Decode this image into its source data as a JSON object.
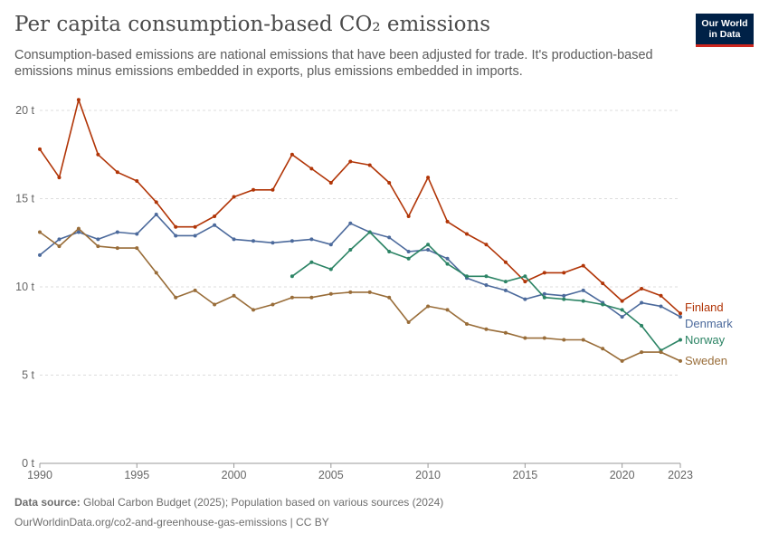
{
  "header": {
    "title": "Per capita consumption-based CO₂ emissions",
    "subtitle": "Consumption-based emissions are national emissions that have been adjusted for trade. It's production-based emissions minus emissions embedded in exports, plus emissions embedded in imports.",
    "logo_line1": "Our World",
    "logo_line2": "in Data"
  },
  "footer": {
    "source_label": "Data source:",
    "source_text": "Global Carbon Budget (2025); Population based on various sources (2024)",
    "url": "OurWorldinData.org/co2-and-greenhouse-gas-emissions | CC BY"
  },
  "colors": {
    "Finland": "#b13507",
    "Denmark": "#4c6a9c",
    "Norway": "#2c8465",
    "Sweden": "#996d39"
  },
  "chart_data": {
    "type": "line",
    "xlim": [
      1990,
      2023
    ],
    "ylim": [
      0,
      20
    ],
    "x_ticks": [
      1990,
      1995,
      2000,
      2005,
      2010,
      2015,
      2020,
      2023
    ],
    "y_ticks": [
      0,
      5,
      10,
      15,
      20
    ],
    "y_tick_labels": [
      "0 t",
      "5 t",
      "10 t",
      "15 t",
      "20 t"
    ],
    "grid": "horizontal",
    "legend": "line-end labels",
    "series": [
      {
        "name": "Finland",
        "x": [
          1990,
          1991,
          1992,
          1993,
          1994,
          1995,
          1996,
          1997,
          1998,
          1999,
          2000,
          2001,
          2002,
          2003,
          2004,
          2005,
          2006,
          2007,
          2008,
          2009,
          2010,
          2011,
          2012,
          2013,
          2014,
          2015,
          2016,
          2017,
          2018,
          2019,
          2020,
          2021,
          2022,
          2023
        ],
        "values": [
          17.8,
          16.2,
          20.6,
          17.5,
          16.5,
          16.0,
          14.8,
          13.4,
          13.4,
          14.0,
          15.1,
          15.5,
          15.5,
          17.5,
          16.7,
          15.9,
          17.1,
          16.9,
          15.9,
          14.0,
          16.2,
          13.7,
          13.0,
          12.4,
          11.4,
          10.3,
          10.8,
          10.8,
          11.2,
          10.2,
          9.2,
          9.9,
          9.5,
          8.5
        ]
      },
      {
        "name": "Denmark",
        "x": [
          1990,
          1991,
          1992,
          1993,
          1994,
          1995,
          1996,
          1997,
          1998,
          1999,
          2000,
          2001,
          2002,
          2003,
          2004,
          2005,
          2006,
          2007,
          2008,
          2009,
          2010,
          2011,
          2012,
          2013,
          2014,
          2015,
          2016,
          2017,
          2018,
          2019,
          2020,
          2021,
          2022,
          2023
        ],
        "values": [
          11.8,
          12.7,
          13.1,
          12.7,
          13.1,
          13.0,
          14.1,
          12.9,
          12.9,
          13.5,
          12.7,
          12.6,
          12.5,
          12.6,
          12.7,
          12.4,
          13.6,
          13.1,
          12.8,
          12.0,
          12.1,
          11.6,
          10.5,
          10.1,
          9.8,
          9.3,
          9.6,
          9.5,
          9.8,
          9.1,
          8.3,
          9.1,
          8.9,
          8.3
        ]
      },
      {
        "name": "Norway",
        "x": [
          2003,
          2004,
          2005,
          2006,
          2007,
          2008,
          2009,
          2010,
          2011,
          2012,
          2013,
          2014,
          2015,
          2016,
          2017,
          2018,
          2019,
          2020,
          2021,
          2022,
          2023
        ],
        "values": [
          10.6,
          11.4,
          11.0,
          12.1,
          13.1,
          12.0,
          11.6,
          12.4,
          11.3,
          10.6,
          10.6,
          10.3,
          10.6,
          9.4,
          9.3,
          9.2,
          9.0,
          8.7,
          7.8,
          6.4,
          7.0
        ]
      },
      {
        "name": "Sweden",
        "x": [
          1990,
          1991,
          1992,
          1993,
          1994,
          1995,
          1996,
          1997,
          1998,
          1999,
          2000,
          2001,
          2002,
          2003,
          2004,
          2005,
          2006,
          2007,
          2008,
          2009,
          2010,
          2011,
          2012,
          2013,
          2014,
          2015,
          2016,
          2017,
          2018,
          2019,
          2020,
          2021,
          2022,
          2023
        ],
        "values": [
          13.1,
          12.3,
          13.3,
          12.3,
          12.2,
          12.2,
          10.8,
          9.4,
          9.8,
          9.0,
          9.5,
          8.7,
          9.0,
          9.4,
          9.4,
          9.6,
          9.7,
          9.7,
          9.4,
          8.0,
          8.9,
          8.7,
          7.9,
          7.6,
          7.4,
          7.1,
          7.1,
          7.0,
          7.0,
          6.5,
          5.8,
          6.3,
          6.3,
          5.8
        ]
      }
    ]
  }
}
